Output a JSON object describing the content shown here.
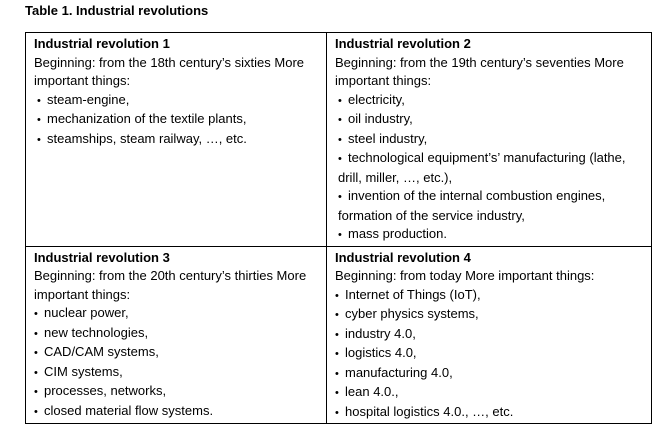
{
  "caption": "Table 1. Industrial revolutions",
  "cells": [
    {
      "title": "Industrial revolution 1",
      "begin": "Beginning: from the 18th century’s sixties More important things:",
      "items": [
        "steam-engine,",
        "mechanization of the textile plants,",
        "steamships, steam railway, …, etc."
      ]
    },
    {
      "title": "Industrial revolution 2",
      "begin": "Beginning: from the 19th century’s seventies More important things:",
      "items": [
        "electricity,",
        "oil industry,",
        "steel industry,",
        "technological equipment’s’ manufacturing (lathe, drill, miller, …, etc.),",
        "invention of the internal combustion engines, formation of the service industry,",
        "mass production."
      ]
    },
    {
      "title": "Industrial revolution 3",
      "begin": "Beginning: from the 20th century’s thirties More important things:",
      "items": [
        "nuclear power,",
        "new technologies,",
        "CAD/CAM systems,",
        "CIM systems,",
        "processes, networks,",
        "closed material flow systems."
      ]
    },
    {
      "title": "Industrial revolution 4",
      "begin": "Beginning: from today More important things:",
      "items": [
        "Internet of Things (IoT),",
        "cyber physics systems,",
        "industry 4.0,",
        "logistics 4.0,",
        "manufacturing 4.0,",
        "lean 4.0.,",
        "hospital logistics 4.0., …, etc."
      ]
    }
  ],
  "bullet_glyph": "•"
}
